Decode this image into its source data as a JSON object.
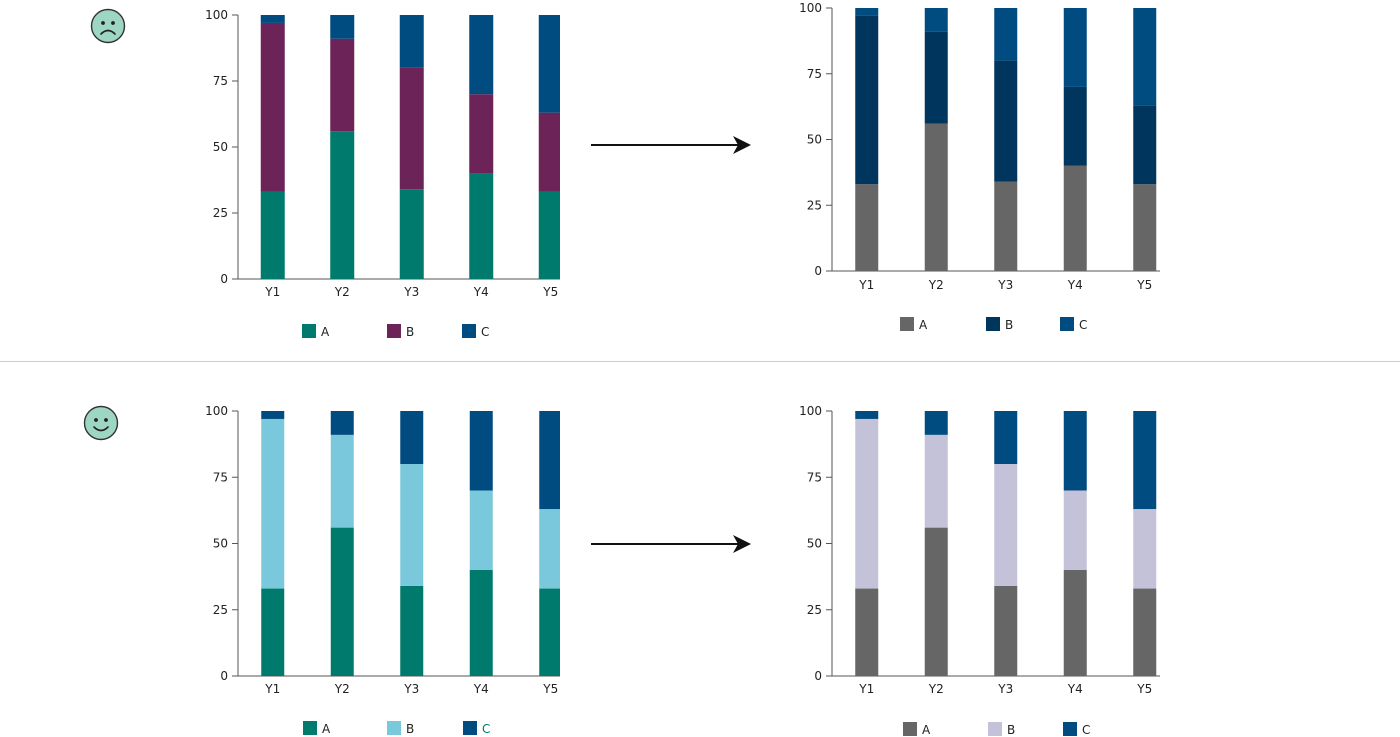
{
  "icons": {
    "top": "sad-face-icon",
    "bottom": "happy-face-icon",
    "arrow": "right-arrow-icon"
  },
  "colors": {
    "teal": "#007a6c",
    "purple": "#6b2358",
    "navy": "#004b80",
    "light_blue": "#79c8dc",
    "gray": "#666666",
    "dark_navy": "#00365d",
    "lavender": "#c4c2d9",
    "face_fill": "#9ed6c4"
  },
  "chart_data": [
    {
      "id": "top-left",
      "type": "bar",
      "stacked": true,
      "categories": [
        "Y1",
        "Y2",
        "Y3",
        "Y4",
        "Y5"
      ],
      "ylim": [
        0,
        100
      ],
      "yticks": [
        0,
        25,
        50,
        75,
        100
      ],
      "series": [
        {
          "name": "A",
          "color": "#007a6c",
          "values": [
            33,
            56,
            34,
            40,
            33
          ]
        },
        {
          "name": "B",
          "color": "#6b2358",
          "values": [
            64,
            35,
            46,
            30,
            30
          ]
        },
        {
          "name": "C",
          "color": "#004b80",
          "values": [
            3,
            9,
            20,
            30,
            37
          ]
        }
      ]
    },
    {
      "id": "top-right",
      "type": "bar",
      "stacked": true,
      "categories": [
        "Y1",
        "Y2",
        "Y3",
        "Y4",
        "Y5"
      ],
      "ylim": [
        0,
        100
      ],
      "yticks": [
        0,
        25,
        50,
        75,
        100
      ],
      "series": [
        {
          "name": "A",
          "color": "#666666",
          "values": [
            33,
            56,
            34,
            40,
            33
          ]
        },
        {
          "name": "B",
          "color": "#00365d",
          "values": [
            64,
            35,
            46,
            30,
            30
          ]
        },
        {
          "name": "C",
          "color": "#004b80",
          "values": [
            3,
            9,
            20,
            30,
            37
          ]
        }
      ]
    },
    {
      "id": "bottom-left",
      "type": "bar",
      "stacked": true,
      "categories": [
        "Y1",
        "Y2",
        "Y3",
        "Y4",
        "Y5"
      ],
      "ylim": [
        0,
        100
      ],
      "yticks": [
        0,
        25,
        50,
        75,
        100
      ],
      "series": [
        {
          "name": "A",
          "color": "#007a6c",
          "values": [
            33,
            56,
            34,
            40,
            33
          ]
        },
        {
          "name": "B",
          "color": "#79c8dc",
          "values": [
            64,
            35,
            46,
            30,
            30
          ]
        },
        {
          "name": "C",
          "color": "#004b80",
          "values": [
            3,
            9,
            20,
            30,
            37
          ],
          "label_color": "#007a6c"
        }
      ]
    },
    {
      "id": "bottom-right",
      "type": "bar",
      "stacked": true,
      "categories": [
        "Y1",
        "Y2",
        "Y3",
        "Y4",
        "Y5"
      ],
      "ylim": [
        0,
        100
      ],
      "yticks": [
        0,
        25,
        50,
        75,
        100
      ],
      "series": [
        {
          "name": "A",
          "color": "#666666",
          "values": [
            33,
            56,
            34,
            40,
            33
          ]
        },
        {
          "name": "B",
          "color": "#c4c2d9",
          "values": [
            64,
            35,
            46,
            30,
            30
          ]
        },
        {
          "name": "C",
          "color": "#004b80",
          "values": [
            3,
            9,
            20,
            30,
            37
          ]
        }
      ]
    }
  ]
}
